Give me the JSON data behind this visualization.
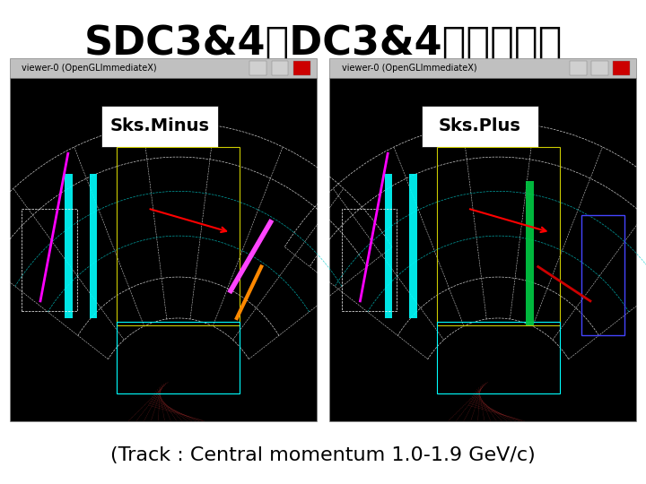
{
  "title": "SDC3&4をDC3&4として使用",
  "subtitle": "(Track : Central momentum 1.0-1.9 GeV/c)",
  "left_label": "Sks.Minus",
  "right_label": "Sks.Plus",
  "left_window_title": "viewer-0 (OpenGLImmediateX)",
  "right_window_title": "viewer-0 (OpenGLImmediateX)",
  "bg_color": "#ffffff",
  "title_fontsize": 32,
  "subtitle_fontsize": 16,
  "label_fontsize": 14,
  "window_title_fontsize": 7,
  "title_color": "#000000",
  "subtitle_color": "#000000"
}
